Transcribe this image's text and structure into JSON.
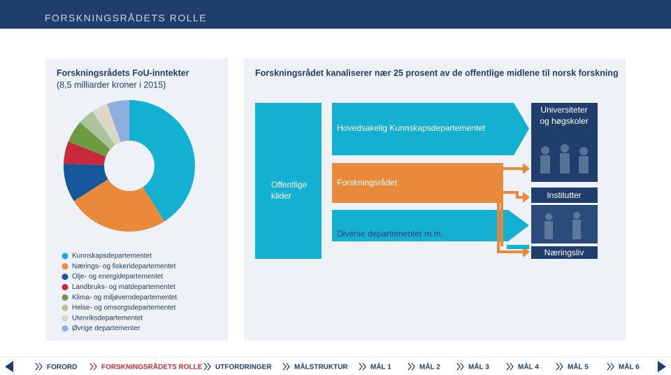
{
  "header": {
    "title": "FORSKNINGSRÅDETS ROLLE"
  },
  "chart_data": {
    "type": "pie",
    "title": "Forskningsrådets FoU-inntekter",
    "subtitle": "(8,5 milliarder kroner i 2015)",
    "categories": [
      "Kunnskapsdepartementet",
      "Nærings- og fiskeridepartementet",
      "Olje- og energidepartementet",
      "Landbruks- og matdepartementet",
      "Klima- og miljøverndepartementet",
      "Helse- og omsorgsdepartementet",
      "Utenriksdepartementet",
      "Øvrige departementer"
    ],
    "values": [
      41,
      25,
      9.5,
      5.5,
      5.5,
      4,
      4,
      5.5
    ],
    "colors": [
      "#14b0d2",
      "#e98a3b",
      "#15579c",
      "#c92a3b",
      "#6f9b40",
      "#abc49b",
      "#d9d7c6",
      "#8fafdc"
    ]
  },
  "diagram": {
    "title": "Forskningsrådet kanaliserer nær 25 prosent av de offentlige midlene til norsk forskning",
    "source": [
      "Offentlige",
      "kilder"
    ],
    "channels": [
      "Hovedsakelig Kunnskapsdepartementet",
      "Forskningsrådet",
      "Diverse departementer m.m."
    ],
    "recipients": [
      [
        "Universiteter",
        "og høgskoler"
      ],
      [
        "Institutter"
      ],
      [
        "Næringsliv"
      ]
    ]
  },
  "nav": [
    "FORORD",
    "FORSKNINGSRÅDETS ROLLE",
    "UTFORDRINGER",
    "MÅLSTRUKTUR",
    "MÅL 1",
    "MÅL 2",
    "MÅL 3",
    "MÅL 4",
    "MÅL 5",
    "MÅL 6"
  ]
}
